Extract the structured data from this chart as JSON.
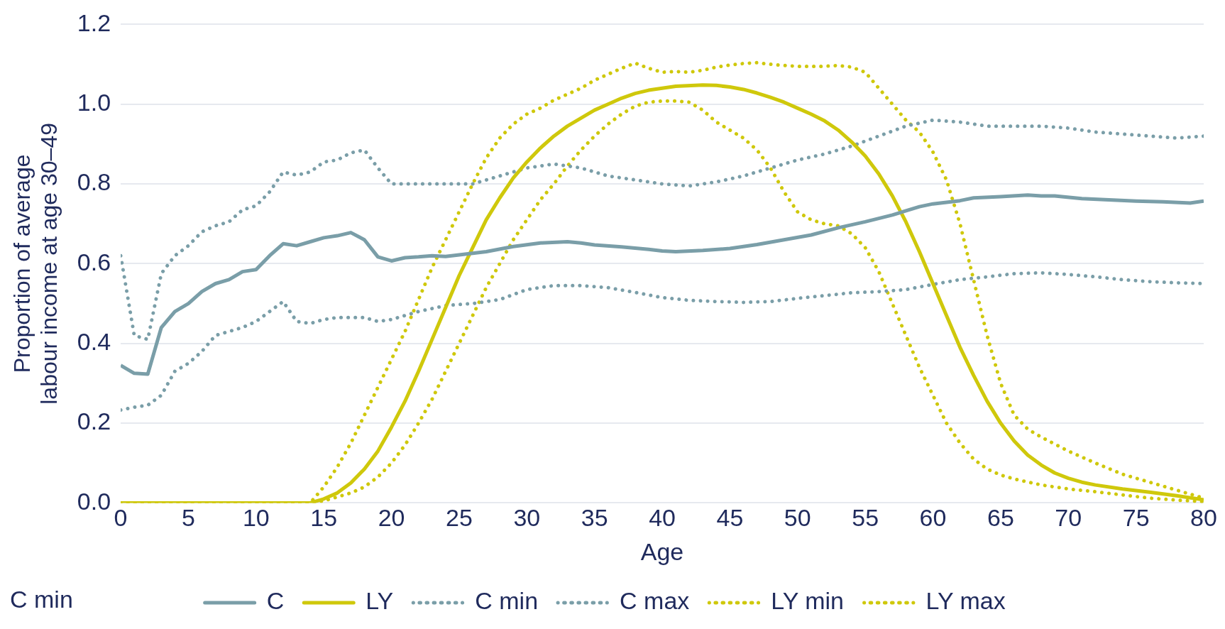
{
  "chart_data": {
    "type": "line",
    "xlabel": "Age",
    "ylabel": "Proportion of average labour income at age 30–49",
    "xlim": [
      0,
      80
    ],
    "xticks": [
      0,
      5,
      10,
      15,
      20,
      25,
      30,
      35,
      40,
      45,
      50,
      55,
      60,
      65,
      70,
      75,
      80
    ],
    "ylim": [
      0,
      1.2
    ],
    "yticks": [
      {
        "value": 0,
        "label": "0.0"
      },
      {
        "value": 0.2,
        "label": "0.2"
      },
      {
        "value": 0.4,
        "label": "0.4"
      },
      {
        "value": 0.6,
        "label": "0.6"
      },
      {
        "value": 0.8,
        "label": "0.8"
      },
      {
        "value": 1,
        "label": "1.0"
      },
      {
        "value": 1.2,
        "label": "1.2"
      }
    ],
    "grid": "y",
    "legend": "bottom",
    "marker": "none",
    "annotations": [
      "C min"
    ],
    "series": [
      {
        "name": "C",
        "color": "#7a9ea8",
        "line_style": "solid",
        "x": [
          0,
          1,
          2,
          3,
          4,
          5,
          6,
          7,
          8,
          9,
          10,
          11,
          12,
          13,
          14,
          15,
          16,
          17,
          18,
          19,
          20,
          21,
          22,
          23,
          24,
          25,
          27,
          29,
          31,
          33,
          34,
          35,
          37,
          39,
          40,
          41,
          43,
          45,
          47,
          49,
          51,
          53,
          55,
          57,
          59,
          60,
          62,
          63,
          65,
          67,
          68,
          69,
          71,
          73,
          75,
          77,
          79,
          80
        ],
        "values": [
          0.345,
          0.325,
          0.323,
          0.44,
          0.48,
          0.5,
          0.53,
          0.55,
          0.56,
          0.58,
          0.585,
          0.62,
          0.65,
          0.645,
          0.655,
          0.665,
          0.67,
          0.678,
          0.66,
          0.617,
          0.607,
          0.615,
          0.617,
          0.62,
          0.618,
          0.622,
          0.63,
          0.643,
          0.652,
          0.655,
          0.652,
          0.647,
          0.642,
          0.636,
          0.632,
          0.63,
          0.633,
          0.638,
          0.648,
          0.66,
          0.672,
          0.69,
          0.705,
          0.722,
          0.743,
          0.75,
          0.758,
          0.765,
          0.768,
          0.772,
          0.77,
          0.77,
          0.763,
          0.76,
          0.757,
          0.755,
          0.752,
          0.757
        ]
      },
      {
        "name": "LY",
        "color": "#cfc80b",
        "line_style": "solid",
        "x": [
          0,
          14,
          15,
          16,
          17,
          18,
          19,
          20,
          21,
          22,
          23,
          24,
          25,
          26,
          27,
          28,
          29,
          30,
          31,
          32,
          33,
          34,
          35,
          36,
          37,
          38,
          39,
          40,
          41,
          43,
          44,
          45,
          46,
          47,
          48,
          49,
          50,
          51,
          52,
          53,
          54,
          55,
          56,
          57,
          58,
          59,
          60,
          61,
          62,
          63,
          64,
          65,
          66,
          67,
          68,
          69,
          70,
          71,
          72,
          74,
          76,
          78,
          80
        ],
        "values": [
          0,
          0,
          0.01,
          0.025,
          0.05,
          0.085,
          0.13,
          0.19,
          0.255,
          0.33,
          0.41,
          0.49,
          0.57,
          0.64,
          0.71,
          0.765,
          0.815,
          0.855,
          0.89,
          0.92,
          0.945,
          0.965,
          0.985,
          1.0,
          1.015,
          1.027,
          1.035,
          1.04,
          1.045,
          1.048,
          1.047,
          1.043,
          1.037,
          1.028,
          1.017,
          1.005,
          0.99,
          0.975,
          0.958,
          0.935,
          0.905,
          0.87,
          0.825,
          0.77,
          0.705,
          0.63,
          0.55,
          0.47,
          0.39,
          0.32,
          0.255,
          0.2,
          0.155,
          0.12,
          0.095,
          0.075,
          0.062,
          0.052,
          0.045,
          0.035,
          0.027,
          0.018,
          0.008
        ]
      },
      {
        "name": "C min",
        "color": "#7a9ea8",
        "line_style": "dotted",
        "x": [
          0,
          1,
          2,
          3,
          4,
          5,
          6,
          7,
          8,
          9,
          10,
          11,
          12,
          13,
          14,
          15,
          16,
          17,
          18,
          19,
          20,
          22,
          24,
          26,
          28,
          30,
          32,
          34,
          36,
          38,
          40,
          42,
          44,
          46,
          48,
          50,
          52,
          54,
          56,
          58,
          60,
          62,
          64,
          66,
          68,
          70,
          72,
          74,
          76,
          78,
          80
        ],
        "values": [
          0.233,
          0.24,
          0.245,
          0.27,
          0.33,
          0.35,
          0.38,
          0.42,
          0.43,
          0.44,
          0.455,
          0.48,
          0.505,
          0.455,
          0.45,
          0.46,
          0.465,
          0.465,
          0.465,
          0.455,
          0.46,
          0.48,
          0.495,
          0.5,
          0.51,
          0.535,
          0.545,
          0.545,
          0.54,
          0.528,
          0.515,
          0.508,
          0.505,
          0.503,
          0.505,
          0.513,
          0.52,
          0.527,
          0.53,
          0.535,
          0.548,
          0.56,
          0.567,
          0.575,
          0.577,
          0.573,
          0.567,
          0.56,
          0.555,
          0.552,
          0.55
        ]
      },
      {
        "name": "C max",
        "color": "#7a9ea8",
        "line_style": "dotted",
        "x": [
          0,
          1,
          2,
          3,
          4,
          5,
          6,
          7,
          8,
          9,
          10,
          11,
          12,
          13,
          14,
          15,
          16,
          17,
          18,
          19,
          20,
          22,
          24,
          26,
          28,
          30,
          32,
          34,
          36,
          38,
          40,
          42,
          44,
          46,
          48,
          50,
          52,
          54,
          56,
          58,
          60,
          62,
          64,
          66,
          68,
          70,
          72,
          74,
          76,
          78,
          80
        ],
        "values": [
          0.62,
          0.42,
          0.41,
          0.575,
          0.62,
          0.645,
          0.68,
          0.695,
          0.705,
          0.735,
          0.745,
          0.78,
          0.83,
          0.822,
          0.83,
          0.855,
          0.86,
          0.878,
          0.885,
          0.84,
          0.8,
          0.8,
          0.8,
          0.8,
          0.82,
          0.84,
          0.85,
          0.84,
          0.82,
          0.81,
          0.8,
          0.795,
          0.805,
          0.82,
          0.84,
          0.86,
          0.875,
          0.895,
          0.92,
          0.945,
          0.96,
          0.955,
          0.945,
          0.945,
          0.945,
          0.94,
          0.93,
          0.925,
          0.92,
          0.915,
          0.92
        ]
      },
      {
        "name": "LY min",
        "color": "#cfc80b",
        "line_style": "dotted",
        "x": [
          0,
          14,
          15,
          16,
          17,
          18,
          19,
          20,
          21,
          22,
          23,
          24,
          25,
          26,
          27,
          28,
          29,
          30,
          31,
          32,
          33,
          34,
          35,
          36,
          37,
          38,
          39,
          40,
          41,
          42,
          43,
          44,
          45,
          46,
          47,
          48,
          49,
          50,
          51,
          52,
          53,
          54,
          55,
          56,
          57,
          58,
          59,
          60,
          61,
          62,
          63,
          64,
          65,
          66,
          68,
          70,
          72,
          74,
          76,
          78,
          80
        ],
        "values": [
          0,
          0,
          0.005,
          0.015,
          0.025,
          0.04,
          0.065,
          0.1,
          0.145,
          0.2,
          0.26,
          0.33,
          0.4,
          0.47,
          0.54,
          0.6,
          0.66,
          0.71,
          0.76,
          0.8,
          0.845,
          0.885,
          0.92,
          0.95,
          0.975,
          0.995,
          1.005,
          1.008,
          1.008,
          1.005,
          0.985,
          0.955,
          0.935,
          0.915,
          0.885,
          0.84,
          0.78,
          0.73,
          0.71,
          0.7,
          0.695,
          0.675,
          0.64,
          0.58,
          0.5,
          0.42,
          0.34,
          0.27,
          0.2,
          0.15,
          0.11,
          0.085,
          0.07,
          0.06,
          0.045,
          0.035,
          0.028,
          0.02,
          0.012,
          0.007,
          0.003
        ]
      },
      {
        "name": "LY max",
        "color": "#cfc80b",
        "line_style": "dotted",
        "x": [
          0,
          14,
          15,
          16,
          17,
          18,
          19,
          20,
          21,
          22,
          23,
          24,
          25,
          26,
          27,
          28,
          29,
          30,
          31,
          32,
          33,
          34,
          35,
          36,
          37,
          38,
          39,
          40,
          41,
          42,
          43,
          44,
          45,
          46,
          47,
          48,
          49,
          50,
          51,
          52,
          53,
          54,
          55,
          56,
          57,
          58,
          59,
          60,
          61,
          62,
          63,
          64,
          65,
          66,
          67,
          68,
          70,
          72,
          74,
          76,
          78,
          80
        ],
        "values": [
          0,
          0,
          0.04,
          0.09,
          0.15,
          0.22,
          0.29,
          0.36,
          0.43,
          0.51,
          0.59,
          0.66,
          0.73,
          0.8,
          0.865,
          0.915,
          0.95,
          0.975,
          0.99,
          1.01,
          1.025,
          1.04,
          1.06,
          1.075,
          1.09,
          1.103,
          1.09,
          1.08,
          1.082,
          1.08,
          1.085,
          1.093,
          1.098,
          1.102,
          1.104,
          1.1,
          1.097,
          1.095,
          1.095,
          1.095,
          1.097,
          1.093,
          1.08,
          1.04,
          1.0,
          0.96,
          0.93,
          0.88,
          0.81,
          0.7,
          0.56,
          0.42,
          0.3,
          0.22,
          0.185,
          0.165,
          0.13,
          0.1,
          0.072,
          0.052,
          0.032,
          0.012
        ]
      }
    ]
  }
}
